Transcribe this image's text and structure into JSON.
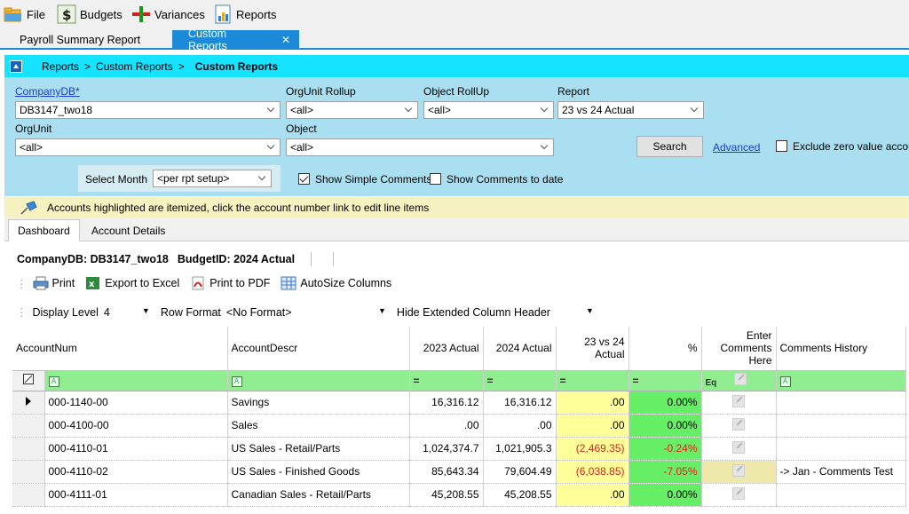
{
  "menu": {
    "items": [
      {
        "label": "File",
        "icon": "folder-open-icon"
      },
      {
        "label": "Budgets",
        "icon": "dollar-icon"
      },
      {
        "label": "Variances",
        "icon": "variance-icon"
      },
      {
        "label": "Reports",
        "icon": "report-chart-icon"
      }
    ]
  },
  "doc_tabs": [
    {
      "label": "Payroll Summary Report",
      "active": false
    },
    {
      "label": "Custom Reports",
      "active": true,
      "close": "✕"
    }
  ],
  "breadcrumb": {
    "parts": [
      "Reports",
      ">",
      "Custom Reports",
      ">"
    ],
    "current": "Custom Reports"
  },
  "filters": {
    "companydb": {
      "label": "CompanyDB*",
      "value": "DB3147_two18"
    },
    "orgunit_rollup": {
      "label": "OrgUnit Rollup",
      "value": "<all>"
    },
    "object_rollup": {
      "label": "Object RollUp",
      "value": "<all>"
    },
    "report": {
      "label": "Report",
      "value": "23 vs 24 Actual"
    },
    "orgunit": {
      "label": "OrgUnit",
      "value": "<all>"
    },
    "object": {
      "label": "Object",
      "value": "<all>"
    },
    "search_label": "Search",
    "advanced_label": "Advanced",
    "exclude_zero_label": "Exclude zero value accoun",
    "select_month_label": "Select Month",
    "select_month_value": "<per rpt setup>",
    "show_simple_comments_label": "Show Simple Comments",
    "show_comments_to_date_label": "Show Comments to date"
  },
  "info_banner": "Accounts highlighted are itemized, click the account number link to edit line items",
  "sub_tabs": [
    {
      "label": "Dashboard",
      "active": true
    },
    {
      "label": "Account Details",
      "active": false
    }
  ],
  "summary": {
    "company": "CompanyDB: DB3147_two18",
    "budget": "BudgetID: 2024 Actual"
  },
  "toolbar": {
    "print": "Print",
    "export_excel": "Export to Excel",
    "print_pdf": "Print to PDF",
    "autosize": "AutoSize Columns"
  },
  "display": {
    "level_label": "Display Level",
    "level_value": "4",
    "row_format_label": "Row Format",
    "row_format_value": "<No Format>",
    "hide_header_label": "Hide Extended Column Header"
  },
  "grid": {
    "headers": {
      "account_num": "AccountNum",
      "account_descr": "AccountDescr",
      "actual_2023": "2023 Actual",
      "actual_2024": "2024 Actual",
      "vs_line1": "23 vs 24",
      "vs_line2": "Actual",
      "pct": "%",
      "enter_comments_1": "Enter",
      "enter_comments_2": "Comments",
      "enter_comments_3": "Here",
      "comments_history": "Comments History"
    },
    "filter_row": {
      "eq": "=",
      "eq_cmt": "Eq",
      "text_filter": "A"
    },
    "rows": [
      {
        "account": "000-1140-00",
        "descr": "Savings",
        "a2023": "16,316.12",
        "a2024": "16,316.12",
        "diff": ".00",
        "pct": "0.00%",
        "history": "",
        "neg": false,
        "highlight": false
      },
      {
        "account": "000-4100-00",
        "descr": "Sales",
        "a2023": ".00",
        "a2024": ".00",
        "diff": ".00",
        "pct": "0.00%",
        "history": "",
        "neg": false,
        "highlight": false
      },
      {
        "account": "000-4110-01",
        "descr": "US Sales - Retail/Parts",
        "a2023": "1,024,374.7",
        "a2024": "1,021,905.3",
        "diff": "(2,469.35)",
        "pct": "-0.24%",
        "history": "",
        "neg": true,
        "highlight": false
      },
      {
        "account": "000-4110-02",
        "descr": "US Sales - Finished Goods",
        "a2023": "85,643.34",
        "a2024": "79,604.49",
        "diff": "(6,038.85)",
        "pct": "-7.05%",
        "history": "-> Jan - Comments Test",
        "neg": true,
        "highlight": true
      },
      {
        "account": "000-4111-01",
        "descr": "Canadian Sales - Retail/Parts",
        "a2023": "45,208.55",
        "a2024": "45,208.55",
        "diff": ".00",
        "pct": "0.00%",
        "history": "",
        "neg": false,
        "highlight": false
      }
    ]
  },
  "colors": {
    "accent_blue": "#1c8ad8",
    "crumb_cyan": "#16e3ff",
    "filter_bg": "#a9dff0",
    "grid_filter_green": "#90ee90",
    "diff_yellow": "#ffff99",
    "pct_green": "#66ee66",
    "negative_red": "#e02020"
  }
}
